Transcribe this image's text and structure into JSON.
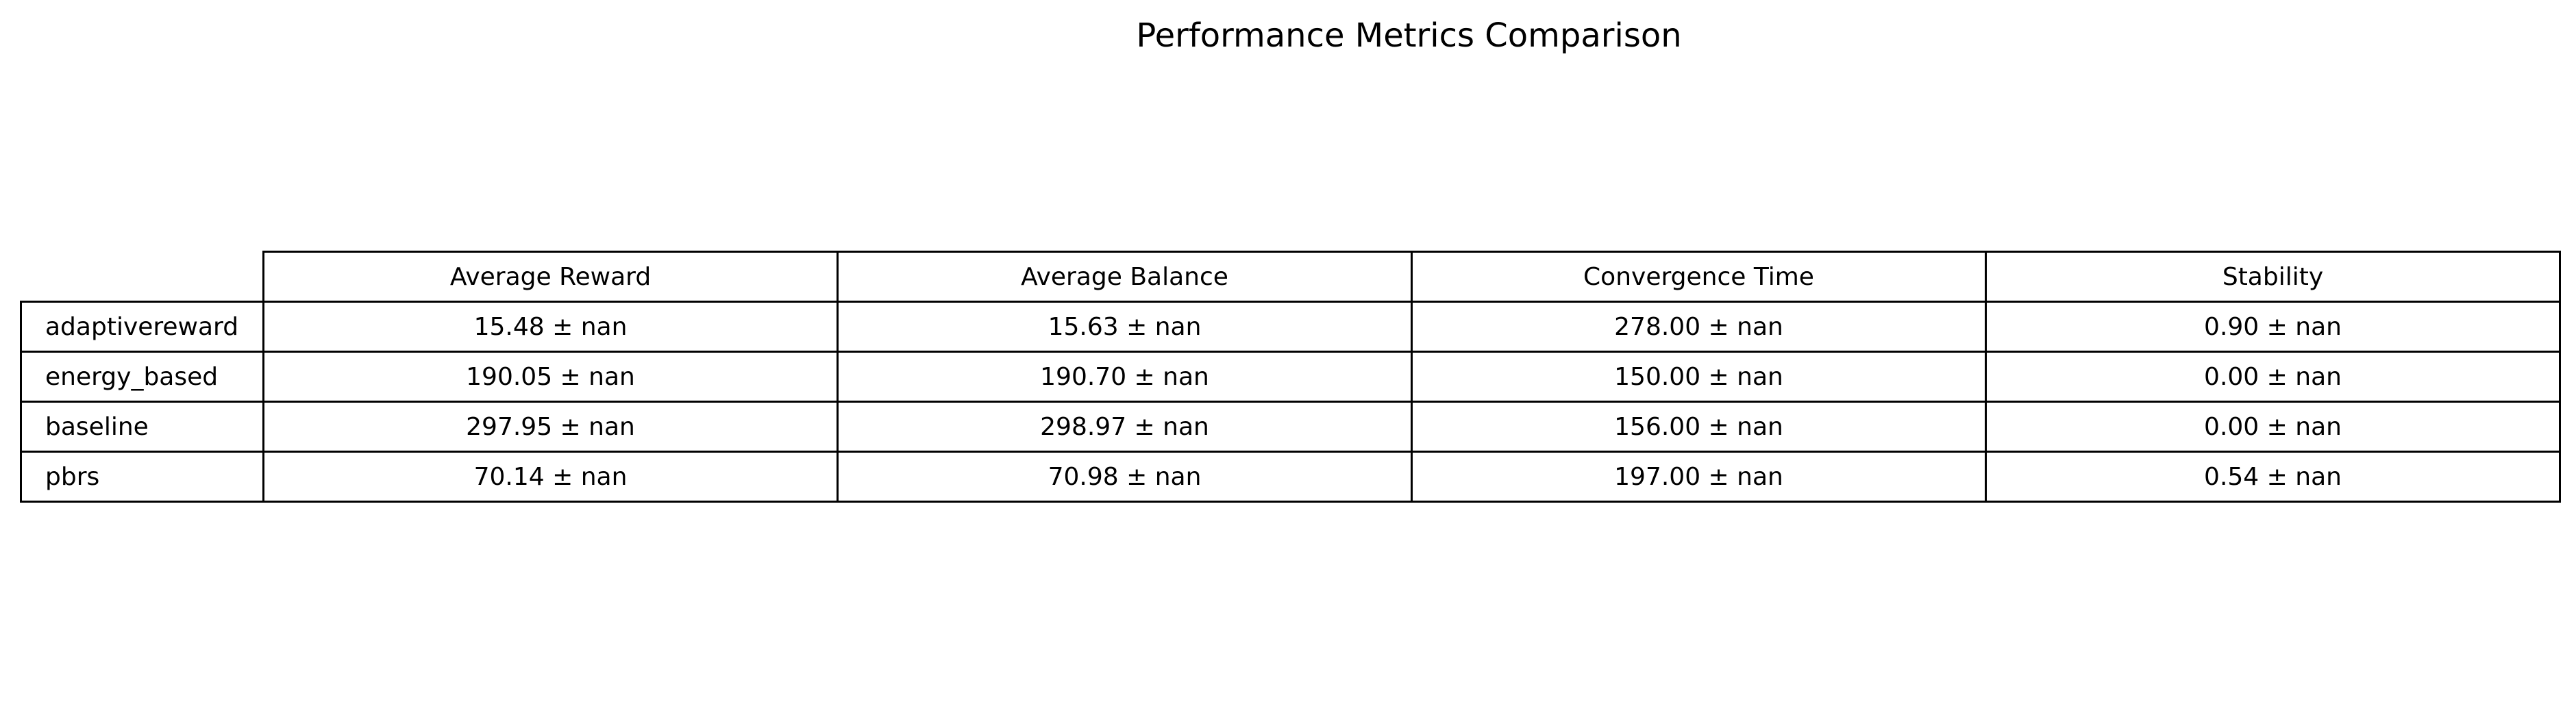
{
  "chart_data": {
    "type": "table",
    "title": "Performance Metrics Comparison",
    "columns": [
      "Average Reward",
      "Average Balance",
      "Convergence Time",
      "Stability"
    ],
    "rows": [
      {
        "label": "adaptivereward",
        "values": [
          "15.48 ± nan",
          "15.63 ± nan",
          "278.00 ± nan",
          "0.90 ± nan"
        ]
      },
      {
        "label": "energy_based",
        "values": [
          "190.05 ± nan",
          "190.70 ± nan",
          "150.00 ± nan",
          "0.00 ± nan"
        ]
      },
      {
        "label": "baseline",
        "values": [
          "297.95 ± nan",
          "298.97 ± nan",
          "156.00 ± nan",
          "0.00 ± nan"
        ]
      },
      {
        "label": "pbrs",
        "values": [
          "70.14 ± nan",
          "70.98 ± nan",
          "197.00 ± nan",
          "0.54 ± nan"
        ]
      }
    ]
  }
}
